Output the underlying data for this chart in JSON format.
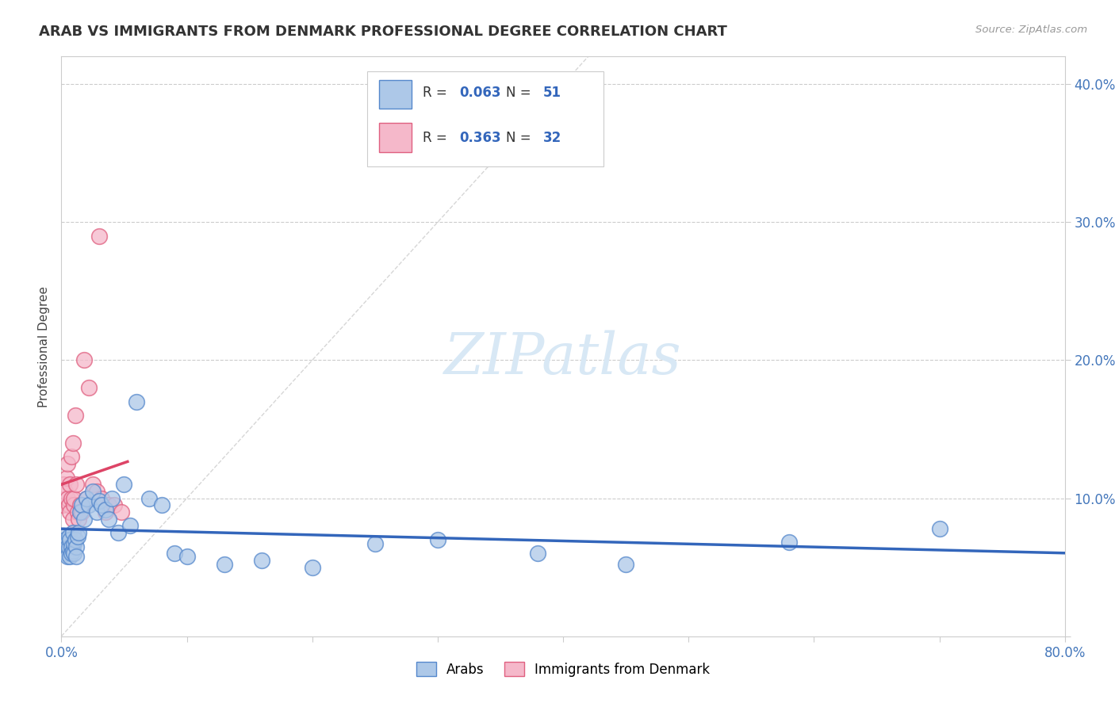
{
  "title": "ARAB VS IMMIGRANTS FROM DENMARK PROFESSIONAL DEGREE CORRELATION CHART",
  "source": "Source: ZipAtlas.com",
  "ylabel": "Professional Degree",
  "legend_labels": [
    "Arabs",
    "Immigrants from Denmark"
  ],
  "r_arab": 0.063,
  "n_arab": 51,
  "r_denmark": 0.363,
  "n_denmark": 32,
  "xlim": [
    0,
    0.8
  ],
  "ylim": [
    0,
    0.42
  ],
  "yticks": [
    0.0,
    0.1,
    0.2,
    0.3,
    0.4
  ],
  "ytick_labels": [
    "",
    "10.0%",
    "20.0%",
    "30.0%",
    "40.0%"
  ],
  "color_arab": "#adc8e8",
  "color_denmark": "#f5b8ca",
  "edge_arab": "#5588cc",
  "edge_denmark": "#e06080",
  "line_color_arab": "#3366bb",
  "line_color_denmark": "#dd4466",
  "background_color": "#ffffff",
  "arab_x": [
    0.001,
    0.002,
    0.003,
    0.004,
    0.004,
    0.005,
    0.005,
    0.006,
    0.006,
    0.007,
    0.007,
    0.008,
    0.008,
    0.009,
    0.009,
    0.01,
    0.01,
    0.011,
    0.012,
    0.012,
    0.013,
    0.014,
    0.015,
    0.016,
    0.018,
    0.02,
    0.022,
    0.025,
    0.028,
    0.03,
    0.032,
    0.035,
    0.038,
    0.04,
    0.045,
    0.05,
    0.055,
    0.06,
    0.07,
    0.08,
    0.09,
    0.1,
    0.13,
    0.16,
    0.2,
    0.25,
    0.3,
    0.38,
    0.45,
    0.58,
    0.7
  ],
  "arab_y": [
    0.068,
    0.073,
    0.07,
    0.063,
    0.06,
    0.065,
    0.058,
    0.072,
    0.064,
    0.07,
    0.058,
    0.065,
    0.06,
    0.075,
    0.062,
    0.067,
    0.06,
    0.07,
    0.065,
    0.058,
    0.072,
    0.075,
    0.09,
    0.095,
    0.085,
    0.1,
    0.095,
    0.105,
    0.09,
    0.098,
    0.095,
    0.092,
    0.085,
    0.1,
    0.075,
    0.11,
    0.08,
    0.17,
    0.1,
    0.095,
    0.06,
    0.058,
    0.052,
    0.055,
    0.05,
    0.067,
    0.07,
    0.06,
    0.052,
    0.068,
    0.078
  ],
  "denmark_x": [
    0.001,
    0.002,
    0.003,
    0.004,
    0.005,
    0.005,
    0.006,
    0.007,
    0.007,
    0.008,
    0.008,
    0.009,
    0.009,
    0.01,
    0.01,
    0.011,
    0.012,
    0.013,
    0.014,
    0.015,
    0.016,
    0.018,
    0.02,
    0.022,
    0.025,
    0.028,
    0.03,
    0.032,
    0.035,
    0.038,
    0.042,
    0.048
  ],
  "denmark_y": [
    0.095,
    0.11,
    0.105,
    0.115,
    0.125,
    0.1,
    0.095,
    0.11,
    0.09,
    0.13,
    0.1,
    0.14,
    0.085,
    0.095,
    0.1,
    0.16,
    0.11,
    0.09,
    0.085,
    0.095,
    0.09,
    0.2,
    0.1,
    0.18,
    0.11,
    0.105,
    0.29,
    0.1,
    0.09,
    0.095,
    0.095,
    0.09
  ],
  "watermark": "ZIPatlas",
  "watermark_color": "#d8e8f5"
}
